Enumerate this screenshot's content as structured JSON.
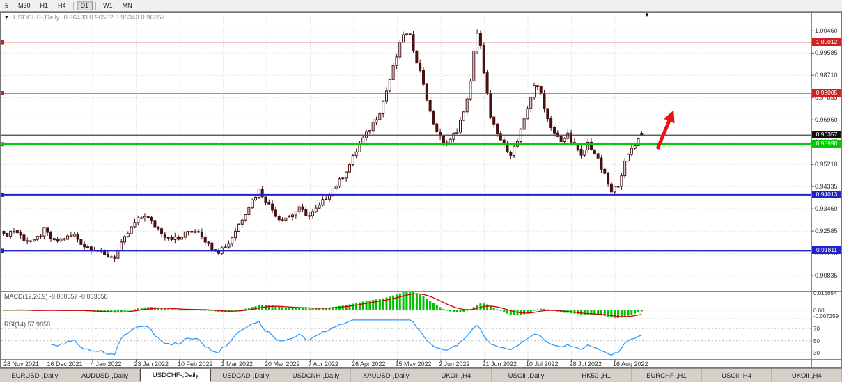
{
  "toolbar": {
    "timeframes": [
      {
        "label": "5",
        "active": false
      },
      {
        "label": "M30",
        "active": false
      },
      {
        "label": "H1",
        "active": false
      },
      {
        "label": "H4",
        "active": false
      },
      {
        "label": "D1",
        "active": true
      },
      {
        "label": "W1",
        "active": false
      },
      {
        "label": "MN",
        "active": false
      }
    ]
  },
  "chart": {
    "dropdown_marker": "▼",
    "symbol": "USDCHF-,Daily",
    "ohlc": "0.96433 0.96532 0.96343 0.96357",
    "scroll_marker": "▼"
  },
  "price_axis": {
    "labels": [
      "1.00460",
      "0.99585",
      "0.98710",
      "0.97835",
      "0.96960",
      "0.96085",
      "0.95210",
      "0.94335",
      "0.93460",
      "0.92585",
      "0.91710",
      "0.90835"
    ]
  },
  "hlines": [
    {
      "value": 1.00012,
      "label": "1.00012",
      "color": "#cc2222",
      "width": 1.2
    },
    {
      "value": 0.98005,
      "label": "0.98005",
      "color": "#cc2222",
      "width": 1.2
    },
    {
      "value": 0.95998,
      "label": "0.95998",
      "color": "#00cc00",
      "width": 3
    },
    {
      "value": 0.94013,
      "label": "0.94013",
      "color": "#2222cc",
      "width": 2
    },
    {
      "value": 0.91811,
      "label": "0.91811",
      "color": "#2222cc",
      "width": 2
    }
  ],
  "current_price": {
    "value": 0.96357,
    "label": "0.96357",
    "color": "#111111"
  },
  "macd": {
    "label": "MACD(12,26,9) -0.000557 -0.003858",
    "axis_labels": [
      {
        "value": 0.015654,
        "label": "0.015654"
      },
      {
        "value": 0,
        "label": "0.00"
      },
      {
        "value": -0.007259,
        "label": "-0.007259"
      }
    ],
    "range": [
      -0.0073,
      0.0157
    ],
    "histogram_color": "#00c000",
    "signal_color": "#cc0000"
  },
  "rsi": {
    "label": "RSI(14) 57.9858",
    "value": 57.9858,
    "levels": [
      {
        "value": 70,
        "label": "70"
      },
      {
        "value": 50,
        "label": "50"
      },
      {
        "value": 30,
        "label": "30"
      }
    ],
    "range": [
      20,
      85
    ],
    "line_color": "#2e9afe"
  },
  "dates": [
    "28 Nov 2021",
    "16 Dec 2021",
    "4 Jan 2022",
    "23 Jan 2022",
    "10 Feb 2022",
    "1 Mar 2022",
    "20 Mar 2022",
    "7 Apr 2022",
    "26 Apr 2022",
    "15 May 2022",
    "2 Jun 2022",
    "21 Jun 2022",
    "10 Jul 2022",
    "28 Jul 2022",
    "16 Aug 2022"
  ],
  "tabs": [
    {
      "label": "EURUSD-,Daily",
      "active": false
    },
    {
      "label": "AUDUSD-,Daily",
      "active": false
    },
    {
      "label": "USDCHF-,Daily",
      "active": true
    },
    {
      "label": "USDCAD-,Daily",
      "active": false
    },
    {
      "label": "USDCNH-,Daily",
      "active": false
    },
    {
      "label": "XAUUSD-,Daily",
      "active": false
    },
    {
      "label": "UKOil-,H4",
      "active": false
    },
    {
      "label": "USOil-,Daily",
      "active": false
    },
    {
      "label": "HK50-,H1",
      "active": false
    },
    {
      "label": "EURCHF-,H1",
      "active": false
    },
    {
      "label": "USOil-,H4",
      "active": false
    },
    {
      "label": "UKOil-,H4",
      "active": false
    }
  ],
  "annotation_arrow": {
    "color": "#ee1111"
  },
  "chart_data": {
    "type": "candlestick",
    "symbol": "USDCHF",
    "timeframe": "Daily",
    "bars": 191,
    "price_range": [
      0.904,
      1.0085
    ],
    "last_ohlc": {
      "open": 0.96433,
      "high": 0.96532,
      "low": 0.96343,
      "close": 0.96357
    },
    "anchors": [
      [
        0,
        0.924
      ],
      [
        3,
        0.9265
      ],
      [
        6,
        0.9228
      ],
      [
        9,
        0.9215
      ],
      [
        12,
        0.9262
      ],
      [
        15,
        0.9215
      ],
      [
        18,
        0.923
      ],
      [
        21,
        0.9242
      ],
      [
        24,
        0.92
      ],
      [
        27,
        0.919
      ],
      [
        30,
        0.9162
      ],
      [
        33,
        0.9158
      ],
      [
        36,
        0.9228
      ],
      [
        39,
        0.929
      ],
      [
        42,
        0.9322
      ],
      [
        45,
        0.928
      ],
      [
        48,
        0.9242
      ],
      [
        52,
        0.9225
      ],
      [
        55,
        0.9258
      ],
      [
        58,
        0.9262
      ],
      [
        61,
        0.9205
      ],
      [
        64,
        0.918
      ],
      [
        67,
        0.9212
      ],
      [
        70,
        0.9285
      ],
      [
        73,
        0.9358
      ],
      [
        76,
        0.942
      ],
      [
        79,
        0.936
      ],
      [
        82,
        0.9308
      ],
      [
        85,
        0.9315
      ],
      [
        88,
        0.9345
      ],
      [
        91,
        0.9318
      ],
      [
        94,
        0.9355
      ],
      [
        97,
        0.941
      ],
      [
        100,
        0.9455
      ],
      [
        103,
        0.952
      ],
      [
        106,
        0.96
      ],
      [
        109,
        0.966
      ],
      [
        112,
        0.973
      ],
      [
        114,
        0.981
      ],
      [
        116,
        0.99
      ],
      [
        118,
        0.999
      ],
      [
        119,
        1.0035
      ],
      [
        121,
        1.002
      ],
      [
        123,
        0.993
      ],
      [
        125,
        0.984
      ],
      [
        127,
        0.972
      ],
      [
        129,
        0.965
      ],
      [
        131,
        0.96
      ],
      [
        133,
        0.9618
      ],
      [
        135,
        0.9655
      ],
      [
        137,
        0.972
      ],
      [
        139,
        0.985
      ],
      [
        140,
        0.996
      ],
      [
        141,
        1.003
      ],
      [
        142,
        0.998
      ],
      [
        143,
        0.989
      ],
      [
        145,
        0.97
      ],
      [
        147,
        0.964
      ],
      [
        149,
        0.9595
      ],
      [
        151,
        0.9565
      ],
      [
        153,
        0.961
      ],
      [
        155,
        0.969
      ],
      [
        157,
        0.979
      ],
      [
        158,
        0.9835
      ],
      [
        160,
        0.98
      ],
      [
        162,
        0.97
      ],
      [
        164,
        0.9645
      ],
      [
        166,
        0.9605
      ],
      [
        168,
        0.964
      ],
      [
        170,
        0.9595
      ],
      [
        172,
        0.955
      ],
      [
        174,
        0.9605
      ],
      [
        176,
        0.9565
      ],
      [
        178,
        0.9505
      ],
      [
        180,
        0.9445
      ],
      [
        181,
        0.9408
      ],
      [
        183,
        0.9445
      ],
      [
        185,
        0.9525
      ],
      [
        187,
        0.9585
      ],
      [
        190,
        0.96357
      ]
    ],
    "indicators": [
      {
        "name": "MACD",
        "params": "12,26,9",
        "last_values": [
          -0.000557,
          -0.003858
        ]
      },
      {
        "name": "RSI",
        "params": "14",
        "last_value": 57.9858
      }
    ]
  }
}
